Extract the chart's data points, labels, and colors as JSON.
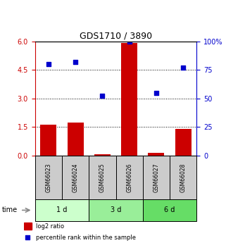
{
  "title": "GDS1710 / 3890",
  "samples": [
    "GSM66023",
    "GSM66024",
    "GSM66025",
    "GSM66026",
    "GSM66027",
    "GSM66028"
  ],
  "log2_ratio": [
    1.62,
    1.72,
    0.05,
    5.9,
    0.15,
    1.4
  ],
  "percentile_rank": [
    80,
    82,
    52,
    100,
    55,
    77
  ],
  "groups": [
    {
      "label": "1 d",
      "indices": [
        0,
        1
      ],
      "color": "#ccffcc"
    },
    {
      "label": "3 d",
      "indices": [
        2,
        3
      ],
      "color": "#99ee99"
    },
    {
      "label": "6 d",
      "indices": [
        4,
        5
      ],
      "color": "#66dd66"
    }
  ],
  "bar_color": "#cc0000",
  "dot_color": "#0000cc",
  "left_ylim": [
    0,
    6
  ],
  "right_ylim": [
    0,
    100
  ],
  "left_yticks": [
    0,
    1.5,
    3,
    4.5,
    6
  ],
  "right_yticks": [
    0,
    25,
    50,
    75,
    100
  ],
  "right_yticklabels": [
    "0",
    "25",
    "50",
    "75",
    "100%"
  ],
  "left_ytick_color": "#cc0000",
  "right_ytick_color": "#0000cc",
  "legend_log2_label": "log2 ratio",
  "legend_pct_label": "percentile rank within the sample",
  "time_label": "time",
  "sample_box_color": "#cccccc",
  "bar_width": 0.6
}
